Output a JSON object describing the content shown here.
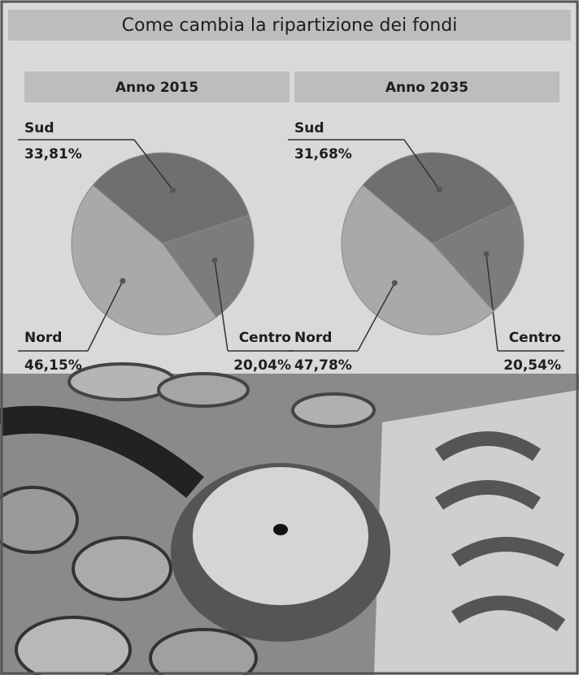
{
  "title": "Come cambia la ripartizione dei fondi",
  "chart_data": [
    {
      "type": "pie",
      "title": "Anno 2015",
      "categories": [
        "Sud",
        "Centro",
        "Nord"
      ],
      "values": [
        33.81,
        20.04,
        46.15
      ],
      "value_labels": [
        "33,81%",
        "20,04%",
        "46,15%"
      ],
      "colors": [
        "#6f6f6f",
        "#7c7c7c",
        "#a9a9a9"
      ]
    },
    {
      "type": "pie",
      "title": "Anno 2035",
      "categories": [
        "Sud",
        "Centro",
        "Nord"
      ],
      "values": [
        31.68,
        20.54,
        47.78
      ],
      "value_labels": [
        "31,68%",
        "20,54%",
        "47,78%"
      ],
      "colors": [
        "#6f6f6f",
        "#7c7c7c",
        "#a9a9a9"
      ]
    }
  ]
}
